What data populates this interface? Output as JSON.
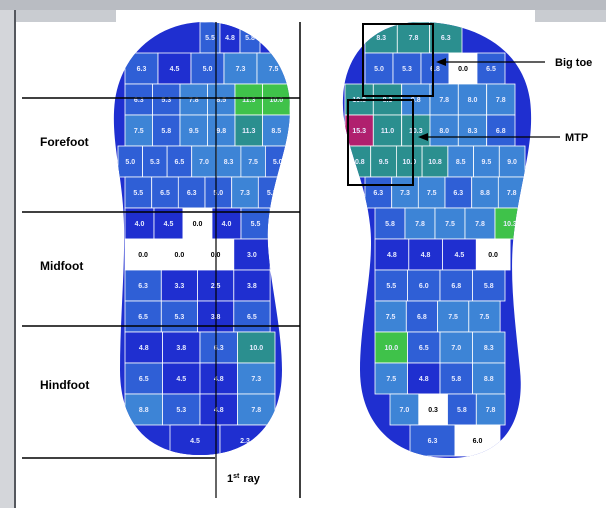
{
  "labels": {
    "forefoot": "Forefoot",
    "midfoot": "Midfoot",
    "hindfoot": "Hindfoot",
    "first_ray": "1",
    "first_ray_sup": "st",
    "first_ray_word": "ray",
    "big_toe": "Big toe",
    "mtp": "MTP"
  },
  "colors": {
    "dark_blue": "#1f2fd0",
    "mid_blue": "#2f5fd6",
    "light_blue": "#3d84d6",
    "teal": "#2b8f8f",
    "green": "#3fc24a",
    "magenta": "#b0206e",
    "lavender": "#8a90e8",
    "white": "#ffffff"
  },
  "left_foot": {
    "rows": [
      {
        "cells": [
          {
            "v": "5.5",
            "c": "mid_blue"
          },
          {
            "v": "4.8",
            "c": "dark_blue"
          },
          {
            "v": "5.8",
            "c": "mid_blue"
          }
        ]
      },
      {
        "cells": [
          {
            "v": "6.3",
            "c": "mid_blue"
          },
          {
            "v": "4.5",
            "c": "dark_blue"
          },
          {
            "v": "5.0",
            "c": "mid_blue"
          },
          {
            "v": "7.3",
            "c": "light_blue"
          },
          {
            "v": "7.5",
            "c": "light_blue"
          }
        ]
      },
      {
        "cells": [
          {
            "v": "6.3",
            "c": "mid_blue"
          },
          {
            "v": "5.3",
            "c": "mid_blue"
          },
          {
            "v": "7.8",
            "c": "light_blue"
          },
          {
            "v": "8.5",
            "c": "light_blue"
          },
          {
            "v": "11.3",
            "c": "green"
          },
          {
            "v": "10.0",
            "c": "green"
          }
        ]
      },
      {
        "cells": [
          {
            "v": "7.5",
            "c": "light_blue"
          },
          {
            "v": "5.8",
            "c": "mid_blue"
          },
          {
            "v": "9.5",
            "c": "light_blue"
          },
          {
            "v": "9.8",
            "c": "light_blue"
          },
          {
            "v": "11.3",
            "c": "teal"
          },
          {
            "v": "8.5",
            "c": "light_blue"
          }
        ]
      },
      {
        "cells": [
          {
            "v": "5.0",
            "c": "mid_blue"
          },
          {
            "v": "5.3",
            "c": "mid_blue"
          },
          {
            "v": "6.5",
            "c": "mid_blue"
          },
          {
            "v": "7.0",
            "c": "light_blue"
          },
          {
            "v": "8.3",
            "c": "light_blue"
          },
          {
            "v": "7.5",
            "c": "light_blue"
          },
          {
            "v": "5.0",
            "c": "mid_blue"
          }
        ]
      },
      {
        "cells": [
          {
            "v": "5.5",
            "c": "mid_blue"
          },
          {
            "v": "6.5",
            "c": "mid_blue"
          },
          {
            "v": "6.3",
            "c": "mid_blue"
          },
          {
            "v": "5.0",
            "c": "mid_blue"
          },
          {
            "v": "7.3",
            "c": "light_blue"
          },
          {
            "v": "5.3",
            "c": "mid_blue"
          }
        ]
      },
      {
        "cells": [
          {
            "v": "4.0",
            "c": "dark_blue"
          },
          {
            "v": "4.5",
            "c": "dark_blue"
          },
          {
            "v": "0.0",
            "c": "white"
          },
          {
            "v": "4.0",
            "c": "dark_blue"
          },
          {
            "v": "5.5",
            "c": "mid_blue"
          }
        ]
      },
      {
        "cells": [
          {
            "v": "0.0",
            "c": "white"
          },
          {
            "v": "0.0",
            "c": "white"
          },
          {
            "v": "0.0",
            "c": "white"
          },
          {
            "v": "3.0",
            "c": "dark_blue"
          }
        ]
      },
      {
        "cells": [
          {
            "v": "6.3",
            "c": "mid_blue"
          },
          {
            "v": "3.3",
            "c": "dark_blue"
          },
          {
            "v": "2.5",
            "c": "dark_blue"
          },
          {
            "v": "3.8",
            "c": "dark_blue"
          }
        ]
      },
      {
        "cells": [
          {
            "v": "6.5",
            "c": "mid_blue"
          },
          {
            "v": "5.3",
            "c": "mid_blue"
          },
          {
            "v": "3.8",
            "c": "dark_blue"
          },
          {
            "v": "6.5",
            "c": "mid_blue"
          }
        ]
      },
      {
        "cells": [
          {
            "v": "4.8",
            "c": "dark_blue"
          },
          {
            "v": "3.8",
            "c": "dark_blue"
          },
          {
            "v": "6.3",
            "c": "mid_blue"
          },
          {
            "v": "10.0",
            "c": "teal"
          }
        ]
      },
      {
        "cells": [
          {
            "v": "6.5",
            "c": "mid_blue"
          },
          {
            "v": "4.5",
            "c": "dark_blue"
          },
          {
            "v": "4.8",
            "c": "dark_blue"
          },
          {
            "v": "7.3",
            "c": "light_blue"
          }
        ]
      },
      {
        "cells": [
          {
            "v": "8.8",
            "c": "light_blue"
          },
          {
            "v": "5.3",
            "c": "mid_blue"
          },
          {
            "v": "4.8",
            "c": "dark_blue"
          },
          {
            "v": "7.8",
            "c": "light_blue"
          }
        ]
      },
      {
        "cells": [
          {
            "v": "4.5",
            "c": "dark_blue"
          },
          {
            "v": "2.3",
            "c": "dark_blue"
          }
        ]
      }
    ]
  },
  "right_foot": {
    "rows": [
      {
        "cells": [
          {
            "v": "8.3",
            "c": "teal"
          },
          {
            "v": "7.8",
            "c": "teal"
          },
          {
            "v": "6.3",
            "c": "teal"
          }
        ]
      },
      {
        "cells": [
          {
            "v": "5.0",
            "c": "mid_blue"
          },
          {
            "v": "5.3",
            "c": "mid_blue"
          },
          {
            "v": "6.8",
            "c": "mid_blue"
          },
          {
            "v": "0.0",
            "c": "white"
          },
          {
            "v": "6.5",
            "c": "mid_blue"
          }
        ]
      },
      {
        "cells": [
          {
            "v": "10.8",
            "c": "teal"
          },
          {
            "v": "8.3",
            "c": "teal"
          },
          {
            "v": "9.8",
            "c": "light_blue"
          },
          {
            "v": "7.8",
            "c": "light_blue"
          },
          {
            "v": "8.0",
            "c": "light_blue"
          },
          {
            "v": "7.8",
            "c": "light_blue"
          }
        ]
      },
      {
        "cells": [
          {
            "v": "15.3",
            "c": "magenta"
          },
          {
            "v": "11.0",
            "c": "teal"
          },
          {
            "v": "10.3",
            "c": "teal"
          },
          {
            "v": "8.0",
            "c": "light_blue"
          },
          {
            "v": "8.3",
            "c": "light_blue"
          },
          {
            "v": "6.8",
            "c": "mid_blue"
          }
        ]
      },
      {
        "cells": [
          {
            "v": "10.8",
            "c": "teal"
          },
          {
            "v": "9.5",
            "c": "teal"
          },
          {
            "v": "10.0",
            "c": "teal"
          },
          {
            "v": "10.8",
            "c": "teal"
          },
          {
            "v": "8.5",
            "c": "light_blue"
          },
          {
            "v": "9.5",
            "c": "light_blue"
          },
          {
            "v": "9.0",
            "c": "light_blue"
          }
        ]
      },
      {
        "cells": [
          {
            "v": "6.3",
            "c": "mid_blue"
          },
          {
            "v": "7.3",
            "c": "light_blue"
          },
          {
            "v": "7.5",
            "c": "light_blue"
          },
          {
            "v": "6.3",
            "c": "mid_blue"
          },
          {
            "v": "8.8",
            "c": "light_blue"
          },
          {
            "v": "7.8",
            "c": "light_blue"
          }
        ]
      },
      {
        "cells": [
          {
            "v": "5.8",
            "c": "mid_blue"
          },
          {
            "v": "7.8",
            "c": "light_blue"
          },
          {
            "v": "7.5",
            "c": "light_blue"
          },
          {
            "v": "7.8",
            "c": "light_blue"
          },
          {
            "v": "10.3",
            "c": "green"
          }
        ]
      },
      {
        "cells": [
          {
            "v": "4.8",
            "c": "dark_blue"
          },
          {
            "v": "4.8",
            "c": "dark_blue"
          },
          {
            "v": "4.5",
            "c": "dark_blue"
          },
          {
            "v": "0.0",
            "c": "white"
          }
        ]
      },
      {
        "cells": [
          {
            "v": "5.5",
            "c": "mid_blue"
          },
          {
            "v": "6.0",
            "c": "mid_blue"
          },
          {
            "v": "6.8",
            "c": "mid_blue"
          },
          {
            "v": "5.8",
            "c": "mid_blue"
          }
        ]
      },
      {
        "cells": [
          {
            "v": "7.5",
            "c": "light_blue"
          },
          {
            "v": "6.8",
            "c": "mid_blue"
          },
          {
            "v": "7.5",
            "c": "light_blue"
          },
          {
            "v": "7.5",
            "c": "light_blue"
          }
        ]
      },
      {
        "cells": [
          {
            "v": "10.0",
            "c": "green"
          },
          {
            "v": "6.5",
            "c": "mid_blue"
          },
          {
            "v": "7.0",
            "c": "light_blue"
          },
          {
            "v": "8.3",
            "c": "light_blue"
          }
        ]
      },
      {
        "cells": [
          {
            "v": "7.5",
            "c": "light_blue"
          },
          {
            "v": "4.8",
            "c": "dark_blue"
          },
          {
            "v": "5.8",
            "c": "mid_blue"
          },
          {
            "v": "8.8",
            "c": "light_blue"
          }
        ]
      },
      {
        "cells": [
          {
            "v": "7.0",
            "c": "light_blue"
          },
          {
            "v": "0.3",
            "c": "white"
          },
          {
            "v": "5.8",
            "c": "mid_blue"
          },
          {
            "v": "7.8",
            "c": "light_blue"
          }
        ]
      },
      {
        "cells": [
          {
            "v": "6.3",
            "c": "mid_blue"
          },
          {
            "v": "6.0",
            "c": "white"
          }
        ]
      }
    ]
  }
}
